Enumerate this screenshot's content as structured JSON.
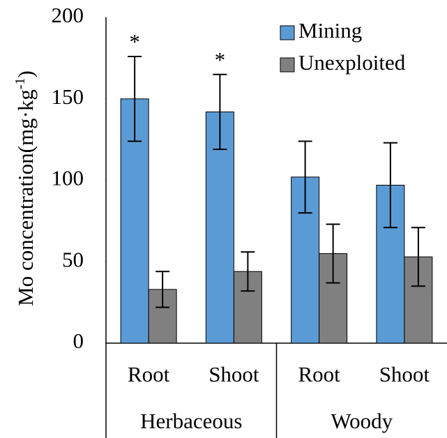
{
  "chart_data": {
    "type": "bar",
    "ylabel": [
      "Mo concentration(mg·kg",
      "-1",
      ")"
    ],
    "categories": [
      "Root",
      "Shoot",
      "Root",
      "Shoot"
    ],
    "groups": [
      {
        "label": "Herbaceous",
        "span": 2
      },
      {
        "label": "Woody",
        "span": 2
      }
    ],
    "series": [
      {
        "name": "Mining",
        "color": "#5b9bd5",
        "values": [
          150,
          142,
          102,
          97
        ],
        "errors": [
          26,
          23,
          22,
          26
        ],
        "significance": [
          "*",
          "*",
          null,
          null
        ]
      },
      {
        "name": "Unexploited",
        "color": "#808080",
        "values": [
          33,
          44,
          55,
          53
        ],
        "errors": [
          11,
          12,
          18,
          18
        ]
      }
    ],
    "ylim": [
      0,
      200
    ],
    "yticks": [
      0,
      50,
      100,
      150,
      200
    ],
    "legend": "top-right"
  }
}
